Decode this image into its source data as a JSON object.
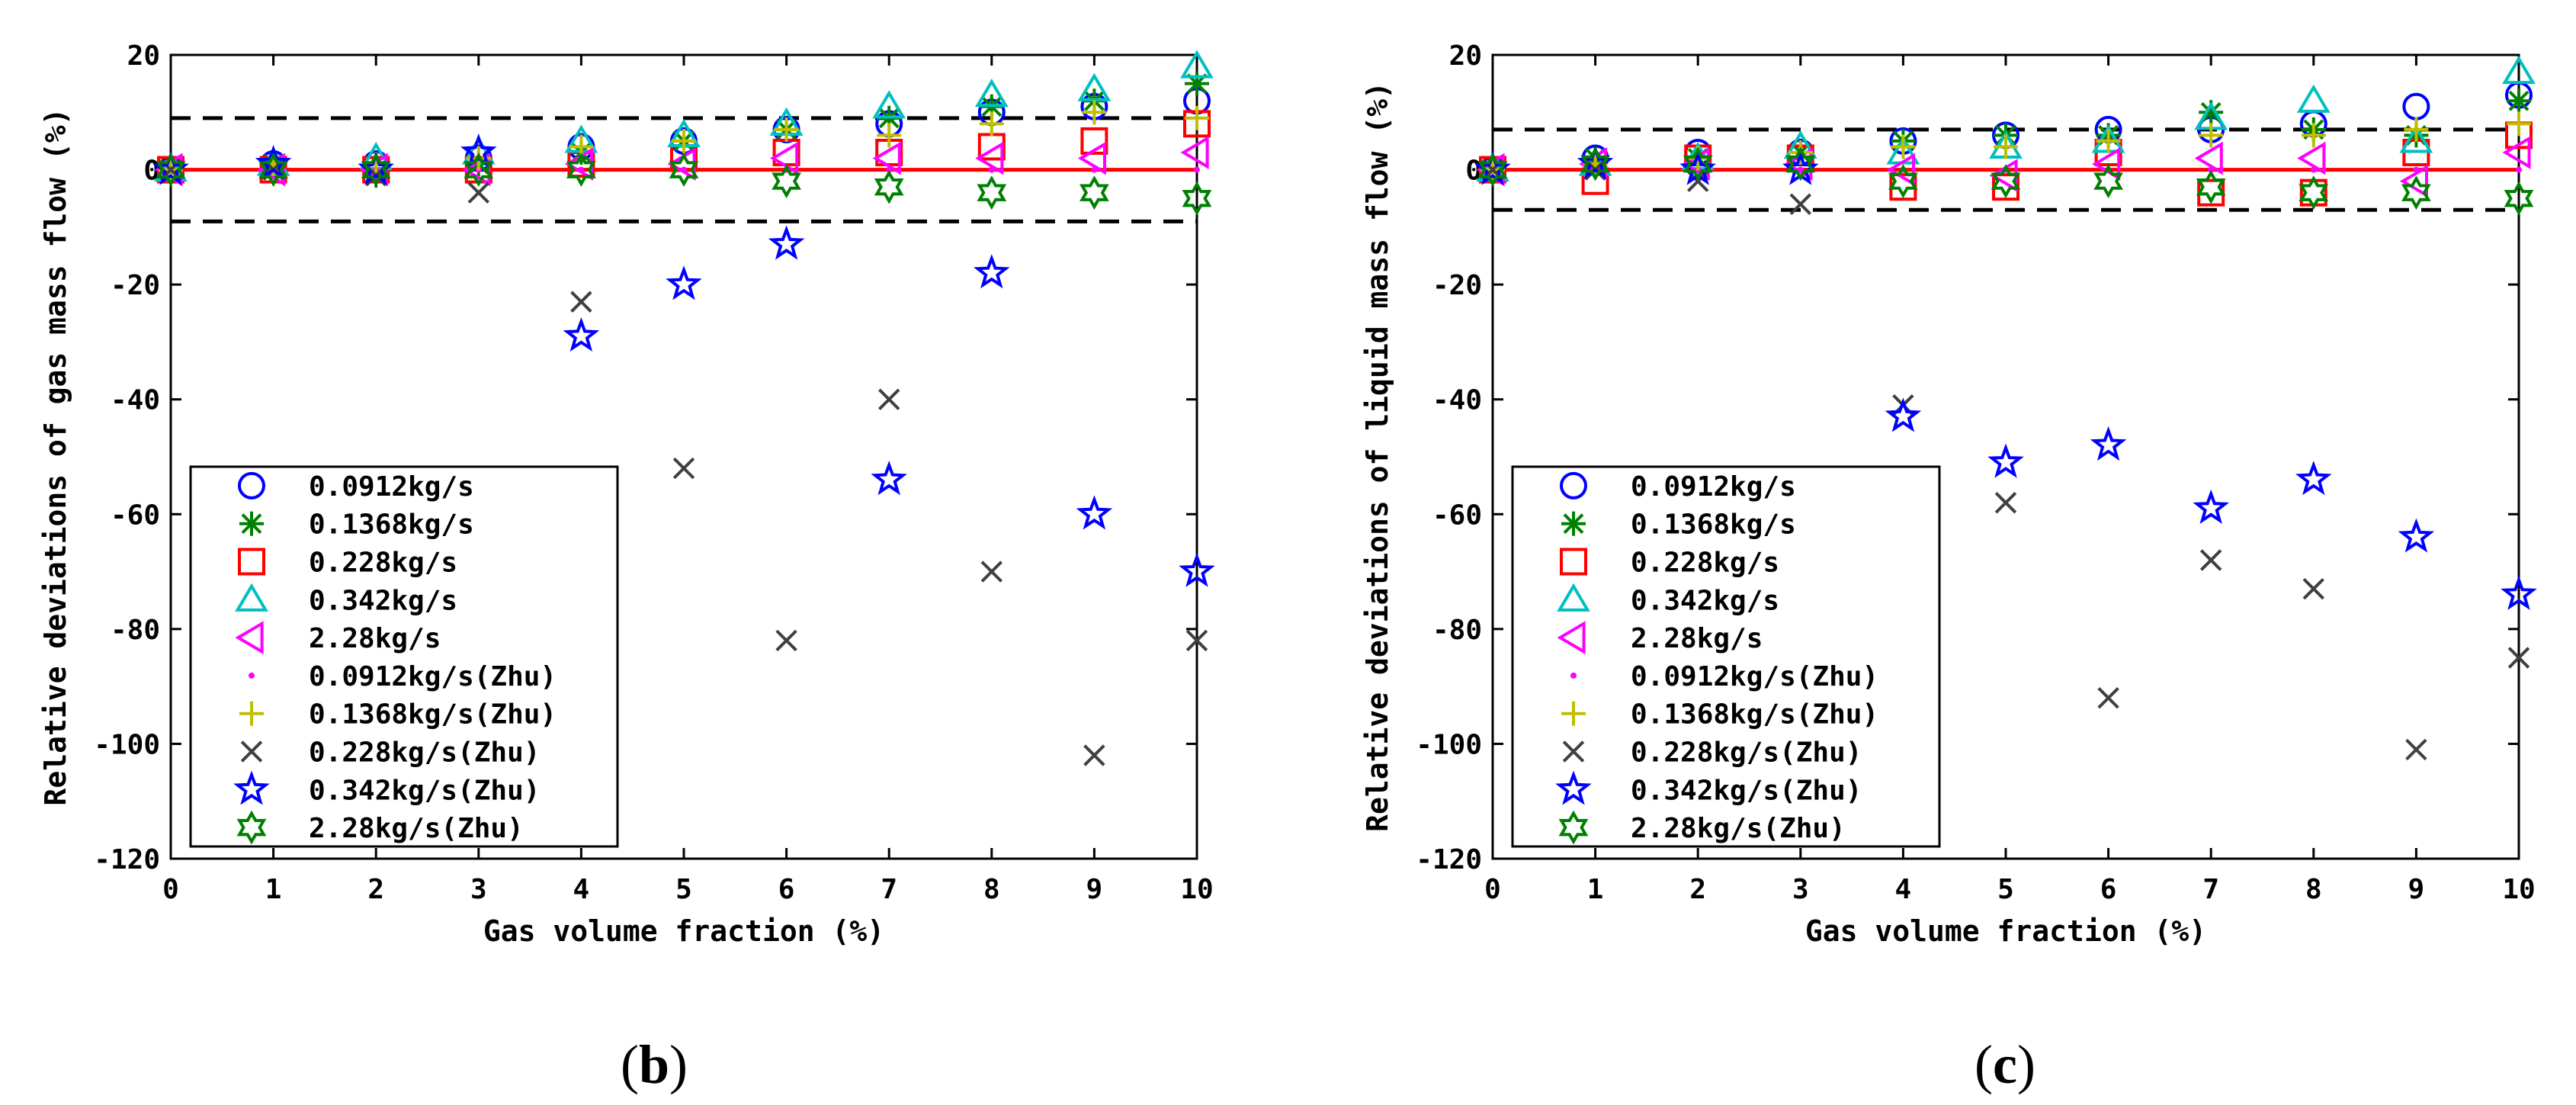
{
  "chart_data": [
    {
      "type": "scatter",
      "panel_label": "b",
      "xlabel": "Gas volume fraction (%)",
      "ylabel": "Relative deviations of gas mass flow (%)",
      "xlim": [
        0,
        10
      ],
      "ylim": [
        -120,
        20
      ],
      "xticks": [
        0,
        1,
        2,
        3,
        4,
        5,
        6,
        7,
        8,
        9,
        10
      ],
      "yticks": [
        20,
        0,
        -20,
        -40,
        -60,
        -80,
        -100,
        -120
      ],
      "limits": {
        "upper": 9,
        "lower": -9,
        "line_style": "dashed"
      },
      "reference_line": 0,
      "legend_position": "lower-left",
      "series": [
        {
          "name": "0.0912kg/s",
          "marker": "circle",
          "color": "#0000ff",
          "x": [
            0,
            1,
            2,
            3,
            4,
            5,
            6,
            7,
            8,
            9,
            10
          ],
          "y": [
            0,
            1,
            1,
            2,
            4,
            5,
            7,
            8,
            10,
            11,
            12
          ]
        },
        {
          "name": "0.1368kg/s",
          "marker": "asterisk",
          "color": "#008000",
          "x": [
            0,
            1,
            2,
            3,
            4,
            5,
            6,
            7,
            8,
            9,
            10
          ],
          "y": [
            0,
            1,
            -1,
            1,
            3,
            5,
            7,
            9,
            11,
            12,
            15
          ]
        },
        {
          "name": "0.228kg/s",
          "marker": "square",
          "color": "#ff0000",
          "x": [
            0,
            1,
            2,
            3,
            4,
            5,
            6,
            7,
            8,
            9,
            10
          ],
          "y": [
            0,
            0,
            0,
            0,
            1,
            2,
            3,
            3,
            4,
            5,
            8
          ]
        },
        {
          "name": "0.342kg/s",
          "marker": "triangle-up",
          "color": "#00bfbf",
          "x": [
            0,
            1,
            2,
            3,
            4,
            5,
            6,
            7,
            8,
            9,
            10
          ],
          "y": [
            0,
            1,
            2,
            3,
            5,
            6,
            8,
            11,
            13,
            14,
            18
          ]
        },
        {
          "name": "2.28kg/s",
          "marker": "triangle-left",
          "color": "#ff00ff",
          "x": [
            0,
            1,
            2,
            3,
            4,
            5,
            6,
            7,
            8,
            9,
            10
          ],
          "y": [
            0,
            0,
            0,
            0,
            1,
            1,
            2,
            2,
            2,
            2,
            3
          ]
        },
        {
          "name": "0.0912kg/s(Zhu)",
          "marker": "dot",
          "color": "#ff00ff",
          "x": [
            0,
            1,
            2,
            3,
            4,
            5,
            6,
            7,
            8,
            9,
            10
          ],
          "y": [
            0,
            0,
            0,
            0,
            0,
            0,
            0,
            0,
            0,
            0,
            0
          ]
        },
        {
          "name": "0.1368kg/s(Zhu)",
          "marker": "plus",
          "color": "#bfbf00",
          "x": [
            0,
            1,
            2,
            3,
            4,
            5,
            6,
            7,
            8,
            9,
            10
          ],
          "y": [
            0,
            1,
            1,
            2,
            4,
            5,
            7,
            6,
            8,
            10,
            9
          ]
        },
        {
          "name": "0.228kg/s(Zhu)",
          "marker": "x",
          "color": "#404040",
          "x": [
            0,
            1,
            2,
            3,
            4,
            5,
            6,
            7,
            8,
            9,
            10
          ],
          "y": [
            0,
            0,
            -1,
            -4,
            -23,
            -52,
            -82,
            -40,
            -70,
            -102,
            -82
          ]
        },
        {
          "name": "0.342kg/s(Zhu)",
          "marker": "star",
          "color": "#0000ff",
          "x": [
            0,
            1,
            2,
            3,
            4,
            5,
            6,
            7,
            8,
            9,
            10
          ],
          "y": [
            0,
            1,
            0,
            3,
            -29,
            -20,
            -13,
            -54,
            -18,
            -60,
            -70
          ]
        },
        {
          "name": "2.28kg/s(Zhu)",
          "marker": "hexagram",
          "color": "#008000",
          "x": [
            0,
            1,
            2,
            3,
            4,
            5,
            6,
            7,
            8,
            9,
            10
          ],
          "y": [
            0,
            0,
            0,
            0,
            0,
            0,
            -2,
            -3,
            -4,
            -4,
            -5
          ]
        }
      ]
    },
    {
      "type": "scatter",
      "panel_label": "c",
      "xlabel": "Gas volume fraction (%)",
      "ylabel": "Relative deviations of liquid mass flow (%)",
      "xlim": [
        0,
        10
      ],
      "ylim": [
        -120,
        20
      ],
      "xticks": [
        0,
        1,
        2,
        3,
        4,
        5,
        6,
        7,
        8,
        9,
        10
      ],
      "yticks": [
        20,
        0,
        -20,
        -40,
        -60,
        -80,
        -100,
        -120
      ],
      "limits": {
        "upper": 7,
        "lower": -7,
        "line_style": "dashed"
      },
      "reference_line": 0,
      "legend_position": "lower-left",
      "series": [
        {
          "name": "0.0912kg/s",
          "marker": "circle",
          "color": "#0000ff",
          "x": [
            0,
            1,
            2,
            3,
            4,
            5,
            6,
            7,
            8,
            9,
            10
          ],
          "y": [
            0,
            2,
            3,
            3,
            5,
            6,
            7,
            7,
            8,
            11,
            13
          ]
        },
        {
          "name": "0.1368kg/s",
          "marker": "asterisk",
          "color": "#008000",
          "x": [
            0,
            1,
            2,
            3,
            4,
            5,
            6,
            7,
            8,
            9,
            10
          ],
          "y": [
            0,
            2,
            2,
            3,
            5,
            6,
            6,
            10,
            7,
            6,
            12
          ]
        },
        {
          "name": "0.228kg/s",
          "marker": "square",
          "color": "#ff0000",
          "x": [
            0,
            1,
            2,
            3,
            4,
            5,
            6,
            7,
            8,
            9,
            10
          ],
          "y": [
            0,
            -2,
            2,
            2,
            -3,
            -3,
            3,
            -4,
            -4,
            3,
            6
          ]
        },
        {
          "name": "0.342kg/s",
          "marker": "triangle-up",
          "color": "#00bfbf",
          "x": [
            0,
            1,
            2,
            3,
            4,
            5,
            6,
            7,
            8,
            9,
            10
          ],
          "y": [
            0,
            1,
            2,
            4,
            3,
            4,
            5,
            9,
            12,
            5,
            17
          ]
        },
        {
          "name": "2.28kg/s",
          "marker": "triangle-left",
          "color": "#ff00ff",
          "x": [
            0,
            1,
            2,
            3,
            4,
            5,
            6,
            7,
            8,
            9,
            10
          ],
          "y": [
            0,
            1,
            1,
            1,
            0,
            -1,
            1,
            2,
            2,
            -2,
            3
          ]
        },
        {
          "name": "0.0912kg/s(Zhu)",
          "marker": "dot",
          "color": "#ff00ff",
          "x": [
            0,
            1,
            2,
            3,
            4,
            5,
            6,
            7,
            8,
            9,
            10
          ],
          "y": [
            0,
            0,
            0,
            0,
            0,
            0,
            0,
            0,
            0,
            0,
            0
          ]
        },
        {
          "name": "0.1368kg/s(Zhu)",
          "marker": "plus",
          "color": "#bfbf00",
          "x": [
            0,
            1,
            2,
            3,
            4,
            5,
            6,
            7,
            8,
            9,
            10
          ],
          "y": [
            0,
            1,
            2,
            3,
            4,
            4,
            5,
            6,
            6,
            7,
            8
          ]
        },
        {
          "name": "0.228kg/s(Zhu)",
          "marker": "x",
          "color": "#404040",
          "x": [
            0,
            1,
            2,
            3,
            4,
            5,
            6,
            7,
            8,
            9,
            10
          ],
          "y": [
            0,
            0,
            -2,
            -6,
            -41,
            -58,
            -92,
            -68,
            -73,
            -101,
            -85
          ]
        },
        {
          "name": "0.342kg/s(Zhu)",
          "marker": "star",
          "color": "#0000ff",
          "x": [
            0,
            1,
            2,
            3,
            4,
            5,
            6,
            7,
            8,
            9,
            10
          ],
          "y": [
            0,
            1,
            0,
            0,
            -43,
            -51,
            -48,
            -59,
            -54,
            -64,
            -74
          ]
        },
        {
          "name": "2.28kg/s(Zhu)",
          "marker": "hexagram",
          "color": "#008000",
          "x": [
            0,
            1,
            2,
            3,
            4,
            5,
            6,
            7,
            8,
            9,
            10
          ],
          "y": [
            0,
            1,
            1,
            1,
            -2,
            -2,
            -2,
            -3,
            -4,
            -4,
            -5
          ]
        }
      ]
    }
  ],
  "panels": {
    "b": {
      "label_text": "(b)"
    },
    "c": {
      "label_text": "(c)"
    }
  }
}
